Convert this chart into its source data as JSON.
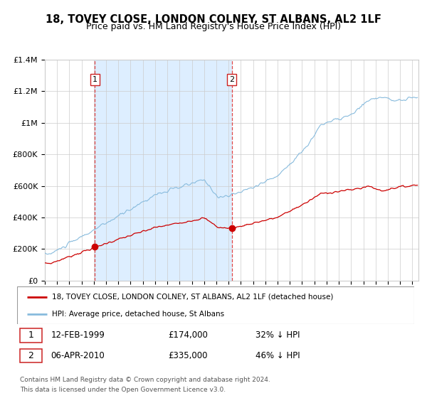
{
  "title": "18, TOVEY CLOSE, LONDON COLNEY, ST ALBANS, AL2 1LF",
  "subtitle": "Price paid vs. HM Land Registry's House Price Index (HPI)",
  "legend_line1": "18, TOVEY CLOSE, LONDON COLNEY, ST ALBANS, AL2 1LF (detached house)",
  "legend_line2": "HPI: Average price, detached house, St Albans",
  "annotation1_label": "1",
  "annotation1_date": "12-FEB-1999",
  "annotation1_price": "£174,000",
  "annotation1_hpi": "32% ↓ HPI",
  "annotation2_label": "2",
  "annotation2_date": "06-APR-2010",
  "annotation2_price": "£335,000",
  "annotation2_hpi": "46% ↓ HPI",
  "footnote1": "Contains HM Land Registry data © Crown copyright and database right 2024.",
  "footnote2": "This data is licensed under the Open Government Licence v3.0.",
  "sale1_year": 1999.12,
  "sale1_value": 174000,
  "sale2_year": 2010.27,
  "sale2_value": 335000,
  "price_color": "#cc0000",
  "hpi_line_color": "#88bbdd",
  "background_color": "#ffffff",
  "shade_color": "#ddeeff",
  "grid_color": "#cccccc",
  "ylim_min": 0,
  "ylim_max": 1400000,
  "title_fontsize": 10.5,
  "subtitle_fontsize": 9
}
